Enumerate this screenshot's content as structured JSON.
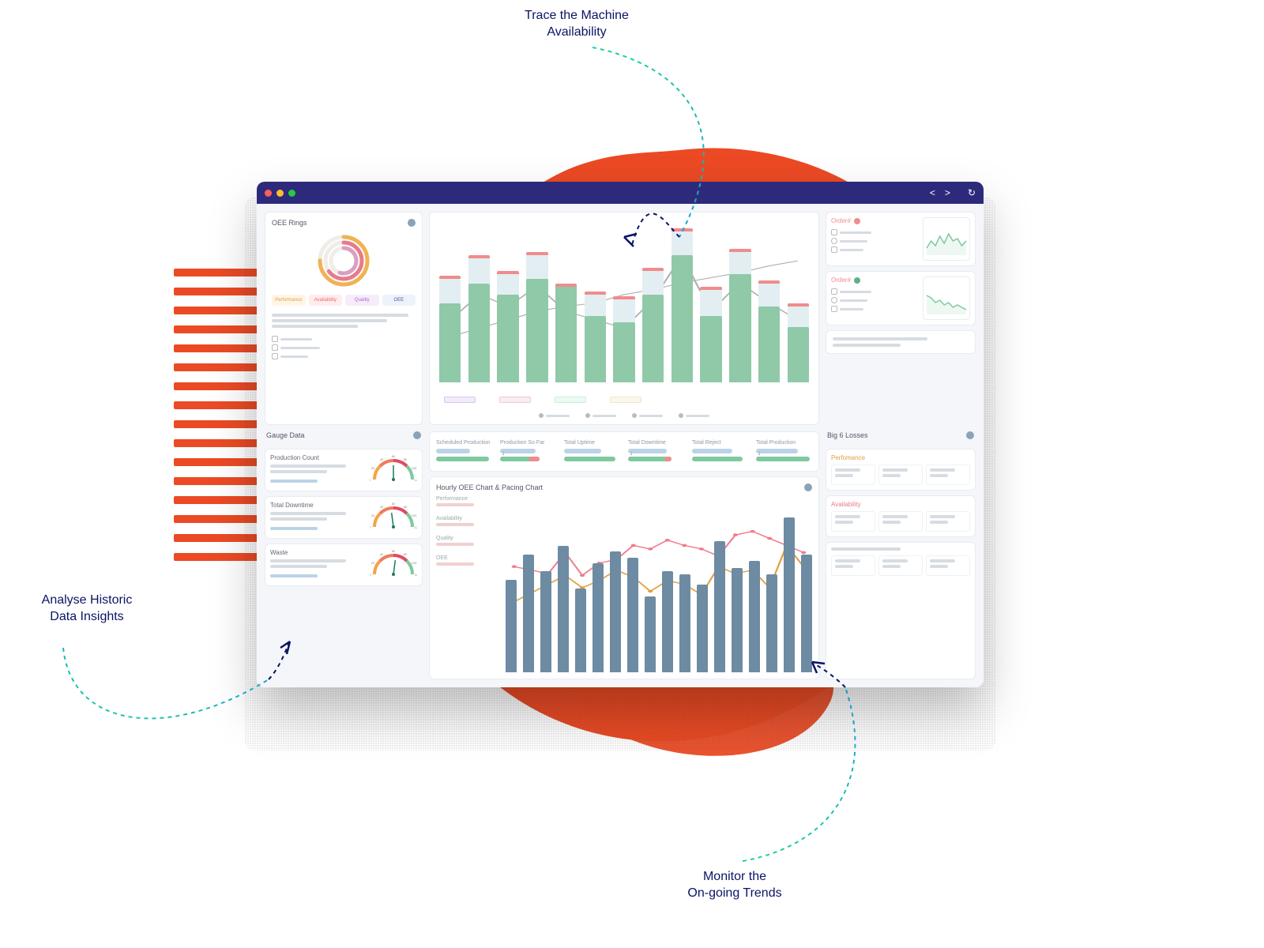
{
  "callouts": {
    "trace": "Trace the Machine\nAvailability",
    "analyse": "Analyse Historic\nData Insights",
    "monitor": "Monitor the\nOn-going Trends"
  },
  "callout_style": {
    "text_color": "#0a1464",
    "fontsize": 16,
    "arrow_color_dark": "#0a1464",
    "arrow_color_grad_a": "#1a9bd7",
    "arrow_color_grad_b": "#1fcfa0",
    "dash": "5 5"
  },
  "decor": {
    "blob_color": "#eb4a24",
    "stripe_color": "#eb4a24",
    "stripe_count": 16
  },
  "titlebar": {
    "bg": "#2d2a7b",
    "dots": [
      "#ff5f57",
      "#ffbd2e",
      "#28c940"
    ],
    "nav_back": "<",
    "nav_fwd": ">",
    "nav_reload": "↻"
  },
  "oee_rings": {
    "title": "OEE Rings",
    "ring_colors": [
      "#f0b354",
      "#e87b8b",
      "#d9a0c1"
    ],
    "ring_values": [
      0.75,
      0.65,
      0.55
    ],
    "chips": [
      {
        "label": "Performance",
        "bg": "#fff5e6",
        "color": "#e0a040"
      },
      {
        "label": "Availability",
        "bg": "#ffecec",
        "color": "#e86b6b"
      },
      {
        "label": "Quality",
        "bg": "#f6ecfa",
        "color": "#b068c8"
      },
      {
        "label": "OEE",
        "bg": "#eef2fb",
        "color": "#4a5a9a"
      }
    ]
  },
  "main_chart": {
    "type": "bar+line",
    "bar_bg_color": "#e2eef2",
    "bar_fill_color": "#8fc9a8",
    "bar_tip_color": "#f08c8c",
    "line_color": "#b0b0b0",
    "bars": [
      {
        "bg_h": 65,
        "fill_h": 50
      },
      {
        "bg_h": 78,
        "fill_h": 62
      },
      {
        "bg_h": 68,
        "fill_h": 55
      },
      {
        "bg_h": 80,
        "fill_h": 65
      },
      {
        "bg_h": 60,
        "fill_h": 62
      },
      {
        "bg_h": 55,
        "fill_h": 42
      },
      {
        "bg_h": 52,
        "fill_h": 38
      },
      {
        "bg_h": 70,
        "fill_h": 55
      },
      {
        "bg_h": 95,
        "fill_h": 80
      },
      {
        "bg_h": 58,
        "fill_h": 42
      },
      {
        "bg_h": 82,
        "fill_h": 68
      },
      {
        "bg_h": 62,
        "fill_h": 48
      },
      {
        "bg_h": 48,
        "fill_h": 35
      }
    ],
    "line1": [
      40,
      55,
      48,
      60,
      45,
      40,
      35,
      52,
      78,
      45,
      62,
      50,
      40
    ],
    "line2": [
      30,
      35,
      40,
      45,
      48,
      50,
      55,
      58,
      62,
      65,
      68,
      72,
      75
    ],
    "timeline_colors": [
      "#d8c6f0",
      "#f0c6d8",
      "#c6f0d8",
      "#f0e6c6"
    ]
  },
  "orders": {
    "title": "Order#",
    "status_color_fail": "#f08c8c",
    "status_color_ok": "#5fb08c",
    "spark_color": "#7fc9a0",
    "cards": [
      {
        "status": "fail",
        "spark": [
          3,
          6,
          4,
          8,
          5,
          9,
          6,
          7,
          4,
          6
        ]
      },
      {
        "status": "ok",
        "spark": [
          8,
          7,
          5,
          6,
          4,
          5,
          3,
          4,
          3,
          2
        ]
      }
    ]
  },
  "gauge_data": {
    "title": "Gauge Data",
    "ticks": [
      "0",
      "20",
      "40",
      "60",
      "80",
      "100",
      "120"
    ],
    "arc_colors": [
      "#f5a34a",
      "#f07b5c",
      "#e04b64",
      "#7fc9a0"
    ],
    "gauges": [
      {
        "label": "Production Count",
        "needle": 60
      },
      {
        "label": "Total Downtime",
        "needle": 55
      },
      {
        "label": "Waste",
        "needle": 65
      }
    ]
  },
  "kpis": {
    "items": [
      {
        "label": "Scheduled Production",
        "arrow": false
      },
      {
        "label": "Production So Far",
        "arrow": true
      },
      {
        "label": "Total Uptime",
        "arrow": false
      },
      {
        "label": "Total Downtime",
        "arrow": true
      },
      {
        "label": "Total Reject",
        "arrow": false
      },
      {
        "label": "Total Production",
        "arrow": true
      }
    ],
    "bar_top_color": "#bcd3e6",
    "bar_bot_color": "#7fc9a0",
    "bar_bot_alt": "#f08c8c",
    "arrow_color": "#e04b64"
  },
  "hourly": {
    "title": "Hourly OEE Chart & Pacing Chart",
    "legend": [
      "Performance",
      "Availability",
      "Quality",
      "OEE"
    ],
    "bar_color": "#6d8ba3",
    "line_colors": [
      "#f07b8b",
      "#e0a040",
      "#7fc9a0"
    ],
    "bars": [
      55,
      70,
      60,
      75,
      50,
      65,
      72,
      68,
      45,
      60,
      58,
      52,
      78,
      62,
      66,
      58,
      92,
      70
    ],
    "line1": [
      60,
      58,
      56,
      68,
      55,
      62,
      64,
      72,
      70,
      75,
      72,
      70,
      66,
      78,
      80,
      76,
      72,
      68
    ],
    "line2": [
      40,
      45,
      50,
      55,
      48,
      52,
      58,
      54,
      46,
      52,
      50,
      44,
      60,
      56,
      58,
      48,
      72,
      60
    ]
  },
  "big6": {
    "title": "Big 6 Losses",
    "sections": [
      {
        "label": "Perfomance",
        "color": "#e0a040"
      },
      {
        "label": "Availability",
        "color": "#e87b8b"
      }
    ]
  }
}
